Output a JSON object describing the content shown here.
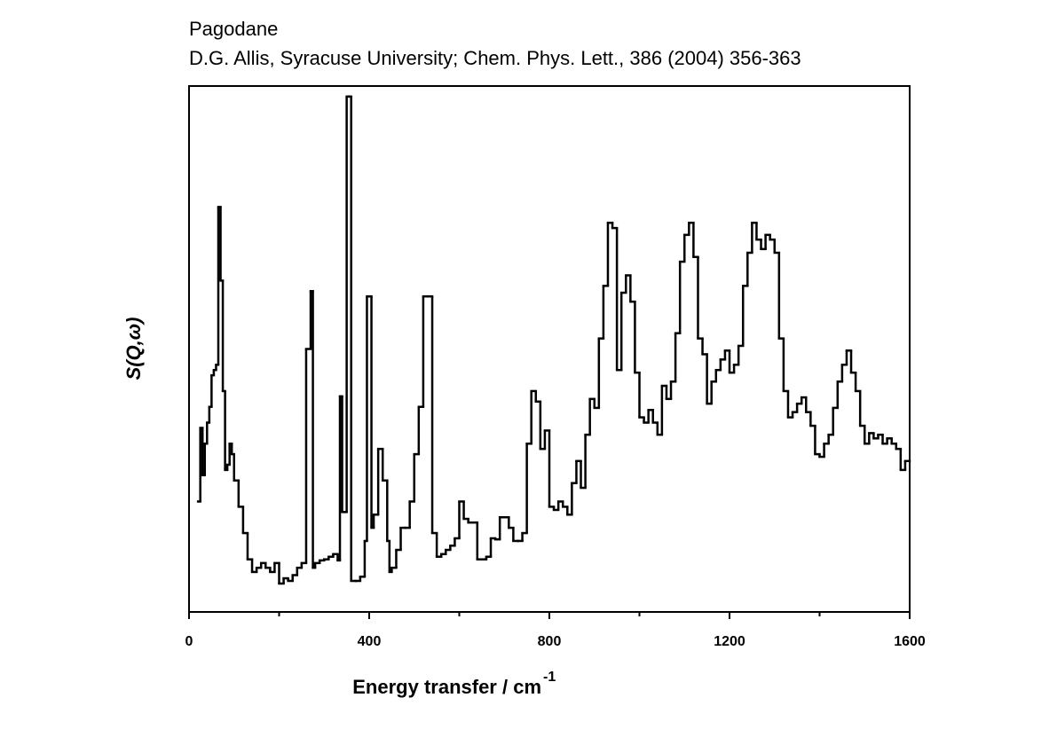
{
  "chart_data": {
    "type": "step",
    "title": "Pagodane",
    "subtitle": "D.G. Allis, Syracuse University; Chem. Phys. Lett., 386 (2004) 356-363",
    "xlabel": "Energy transfer / cm",
    "xlabel_superscript": "-1",
    "ylabel": "S(Q,ω)",
    "xlim": [
      0,
      1600
    ],
    "xticks": [
      0,
      400,
      800,
      1200,
      1600
    ],
    "xticks_minor": [
      200,
      600,
      1000,
      1400
    ],
    "ylim": [
      0,
      100
    ],
    "color": "#000000",
    "x": [
      20,
      25,
      30,
      35,
      40,
      45,
      50,
      55,
      60,
      65,
      70,
      75,
      80,
      85,
      90,
      95,
      100,
      110,
      120,
      130,
      140,
      150,
      160,
      170,
      180,
      190,
      200,
      210,
      220,
      230,
      240,
      250,
      260,
      270,
      275,
      280,
      290,
      300,
      310,
      320,
      330,
      335,
      340,
      345,
      350,
      355,
      360,
      370,
      380,
      390,
      395,
      400,
      405,
      410,
      420,
      430,
      440,
      445,
      450,
      460,
      470,
      480,
      490,
      500,
      510,
      520,
      530,
      540,
      550,
      560,
      570,
      580,
      590,
      600,
      610,
      620,
      640,
      660,
      670,
      680,
      690,
      700,
      710,
      720,
      730,
      740,
      750,
      760,
      770,
      780,
      790,
      800,
      810,
      820,
      830,
      840,
      850,
      860,
      870,
      880,
      890,
      900,
      910,
      920,
      930,
      940,
      950,
      960,
      970,
      980,
      990,
      1000,
      1010,
      1020,
      1030,
      1040,
      1050,
      1060,
      1070,
      1080,
      1090,
      1100,
      1110,
      1120,
      1130,
      1140,
      1150,
      1160,
      1170,
      1180,
      1190,
      1200,
      1210,
      1220,
      1230,
      1240,
      1250,
      1260,
      1270,
      1280,
      1290,
      1300,
      1310,
      1320,
      1330,
      1340,
      1350,
      1360,
      1370,
      1380,
      1390,
      1400,
      1410,
      1420,
      1430,
      1440,
      1450,
      1460,
      1470,
      1480,
      1490,
      1500,
      1510,
      1520,
      1530,
      1540,
      1550,
      1560,
      1570,
      1580,
      1590
    ],
    "values": [
      21,
      35,
      26,
      32,
      36,
      39,
      45,
      46,
      47,
      77,
      63,
      42,
      27,
      28,
      32,
      30,
      25,
      20,
      15,
      10,
      7.6,
      8.4,
      9.3,
      8.4,
      7.6,
      9.3,
      5.4,
      6.4,
      5.9,
      7,
      8.4,
      9.3,
      50,
      61,
      8.4,
      9.3,
      9.8,
      10,
      10.5,
      11,
      9.8,
      41,
      19,
      19,
      98,
      98,
      5.9,
      5.9,
      6.7,
      13.5,
      60,
      60,
      16,
      18.5,
      31,
      25,
      13.5,
      7.6,
      8.4,
      11.8,
      16,
      16,
      21,
      30,
      39,
      60,
      60,
      15,
      10.5,
      11,
      11.8,
      12.6,
      14,
      21,
      17.7,
      17,
      10,
      10.5,
      14,
      13.8,
      18,
      18,
      16,
      13.5,
      13.5,
      15,
      32,
      42,
      40,
      31,
      34.5,
      20,
      19.4,
      21,
      20,
      18.5,
      24.5,
      28.7,
      23.6,
      33.7,
      40.5,
      38.8,
      52,
      62,
      74,
      73,
      46,
      60.7,
      64,
      59,
      45.5,
      37,
      36,
      38.4,
      36,
      33.7,
      43,
      40.5,
      43.8,
      53,
      66.6,
      71.7,
      74,
      67.5,
      52,
      49,
      39.6,
      43.8,
      46,
      48,
      49.7,
      45.5,
      47,
      50.6,
      62,
      68.3,
      74,
      70.8,
      69,
      71.7,
      70.8,
      68.3,
      52,
      42,
      37,
      38,
      39.6,
      40.8,
      38,
      35.4,
      30,
      29.5,
      32,
      33.7,
      38.8,
      43.8,
      47,
      49.7,
      45.5,
      42,
      35.4,
      32,
      34,
      33,
      33.7,
      32,
      33,
      32,
      31,
      27,
      28.7
    ]
  }
}
